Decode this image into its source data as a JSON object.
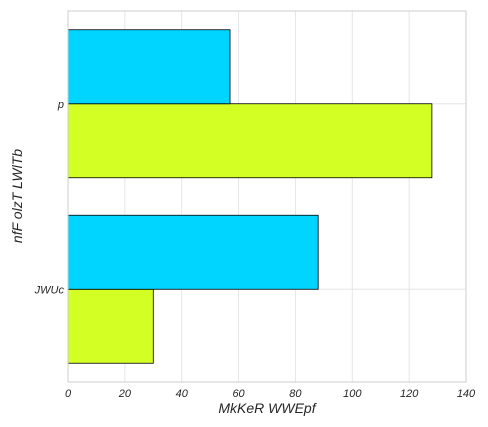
{
  "chart_data": {
    "type": "bar",
    "orientation": "horizontal",
    "categories": [
      "JWUc",
      "p"
    ],
    "series": [
      {
        "values": [
          30,
          128
        ],
        "color": "#d4ff24"
      },
      {
        "values": [
          88,
          57
        ],
        "color": "#00d5ff"
      }
    ],
    "xlabel": "MkKeR  WWEpf",
    "ylabel": "nfF olzT LWlTb",
    "xlim": [
      0,
      140
    ],
    "xticks": [
      0,
      20,
      40,
      60,
      80,
      100,
      120,
      140
    ],
    "grid": true,
    "legend": "none"
  }
}
